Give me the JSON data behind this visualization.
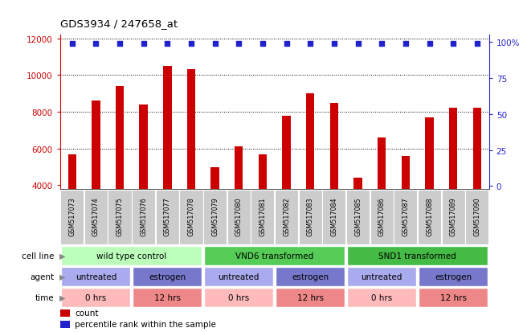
{
  "title": "GDS3934 / 247658_at",
  "samples": [
    "GSM517073",
    "GSM517074",
    "GSM517075",
    "GSM517076",
    "GSM517077",
    "GSM517078",
    "GSM517079",
    "GSM517080",
    "GSM517081",
    "GSM517082",
    "GSM517083",
    "GSM517084",
    "GSM517085",
    "GSM517086",
    "GSM517087",
    "GSM517088",
    "GSM517089",
    "GSM517090"
  ],
  "counts": [
    5700,
    8600,
    9400,
    8400,
    10500,
    10300,
    5000,
    6100,
    5700,
    7800,
    9000,
    8500,
    4400,
    6600,
    5600,
    7700,
    8200,
    8200
  ],
  "percentile_ranks": [
    99,
    99,
    99,
    99,
    99,
    99,
    99,
    99,
    99,
    99,
    99,
    99,
    99,
    99,
    99,
    99,
    99,
    99
  ],
  "bar_color": "#cc0000",
  "dot_color": "#2222cc",
  "ylim_left": [
    3800,
    12200
  ],
  "ylim_right": [
    -2,
    105
  ],
  "yticks_left": [
    4000,
    6000,
    8000,
    10000,
    12000
  ],
  "yticks_right": [
    0,
    25,
    50,
    75,
    100
  ],
  "ylabel_left_color": "#cc0000",
  "ylabel_right_color": "#2222cc",
  "cell_line_groups": [
    {
      "label": "wild type control",
      "start": 0,
      "end": 6,
      "color": "#bbffbb"
    },
    {
      "label": "VND6 transformed",
      "start": 6,
      "end": 12,
      "color": "#55cc55"
    },
    {
      "label": "SND1 transformed",
      "start": 12,
      "end": 18,
      "color": "#44bb44"
    }
  ],
  "agent_groups": [
    {
      "label": "untreated",
      "start": 0,
      "end": 3,
      "color": "#aaaaee"
    },
    {
      "label": "estrogen",
      "start": 3,
      "end": 6,
      "color": "#7777cc"
    },
    {
      "label": "untreated",
      "start": 6,
      "end": 9,
      "color": "#aaaaee"
    },
    {
      "label": "estrogen",
      "start": 9,
      "end": 12,
      "color": "#7777cc"
    },
    {
      "label": "untreated",
      "start": 12,
      "end": 15,
      "color": "#aaaaee"
    },
    {
      "label": "estrogen",
      "start": 15,
      "end": 18,
      "color": "#7777cc"
    }
  ],
  "time_groups": [
    {
      "label": "0 hrs",
      "start": 0,
      "end": 3,
      "color": "#ffbbbb"
    },
    {
      "label": "12 hrs",
      "start": 3,
      "end": 6,
      "color": "#ee8888"
    },
    {
      "label": "0 hrs",
      "start": 6,
      "end": 9,
      "color": "#ffbbbb"
    },
    {
      "label": "12 hrs",
      "start": 9,
      "end": 12,
      "color": "#ee8888"
    },
    {
      "label": "0 hrs",
      "start": 12,
      "end": 15,
      "color": "#ffbbbb"
    },
    {
      "label": "12 hrs",
      "start": 15,
      "end": 18,
      "color": "#ee8888"
    }
  ],
  "tick_bg_color": "#cccccc",
  "bar_width": 0.35
}
